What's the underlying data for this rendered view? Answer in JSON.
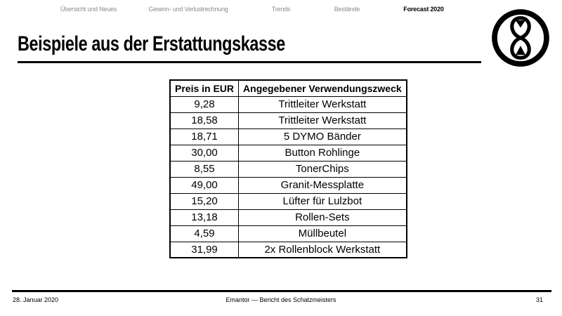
{
  "nav": {
    "tabs": [
      {
        "label": "Übersicht und Neues",
        "active": false
      },
      {
        "label": "Gewinn- und Verlustrechnung",
        "active": false
      },
      {
        "label": "Trends",
        "active": false
      },
      {
        "label": "Bestände",
        "active": false
      },
      {
        "label": "Forecast 2020",
        "active": true
      }
    ]
  },
  "slide": {
    "title": "Beispiele aus der Erstattungskasse"
  },
  "logo": {
    "icon": "hourglass-in-circle"
  },
  "table": {
    "columns": [
      "Preis in EUR",
      "Angegebener Verwendungszweck"
    ],
    "rows": [
      [
        "9,28",
        "Trittleiter Werkstatt"
      ],
      [
        "18,58",
        "Trittleiter Werkstatt"
      ],
      [
        "18,71",
        "5 DYMO Bänder"
      ],
      [
        "30,00",
        "Button Rohlinge"
      ],
      [
        "8,55",
        "TonerChips"
      ],
      [
        "49,00",
        "Granit-Messplatte"
      ],
      [
        "15,20",
        "Lüfter für Lulzbot"
      ],
      [
        "13,18",
        "Rollen-Sets"
      ],
      [
        "4,59",
        "Müllbeutel"
      ],
      [
        "31,99",
        "2x Rollenblock Werkstatt"
      ]
    ]
  },
  "footer": {
    "date": "28. Januar 2020",
    "center_text": "Emantor — Bericht des Schatzmeisters",
    "page_number": "31"
  },
  "colors": {
    "background": "#ffffff",
    "text": "#000000",
    "nav_inactive": "#8a8a8a",
    "nav_active": "#000000"
  }
}
